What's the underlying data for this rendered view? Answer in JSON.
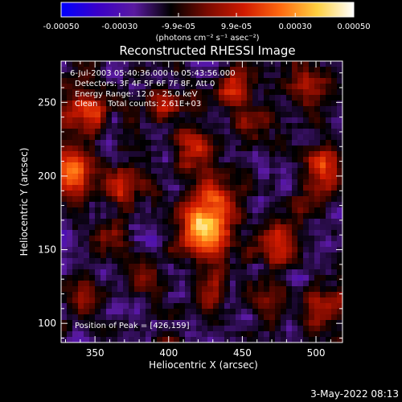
{
  "chart_data": {
    "type": "heatmap",
    "title": "Reconstructed RHESSI Image",
    "xlabel": "Heliocentric X (arcsec)",
    "ylabel": "Heliocentric Y (arcsec)",
    "xlim": [
      327,
      518
    ],
    "ylim": [
      87,
      278
    ],
    "x_ticks": [
      350,
      400,
      450,
      500
    ],
    "y_ticks": [
      100,
      150,
      200,
      250
    ],
    "colorbar": {
      "ticks": [
        "-0.00050",
        "-0.00030",
        "-9.9e-05",
        "9.9e-05",
        "0.00030",
        "0.00050"
      ],
      "tick_values": [
        -0.0005,
        -0.0003,
        -9.9e-05,
        9.9e-05,
        0.0003,
        0.0005
      ],
      "units_label": "(photons cm⁻² s⁻¹ asec⁻²)",
      "colors": [
        "#0000ff",
        "#3a00c8",
        "#5a1aa0",
        "#000000",
        "#7a0a00",
        "#d01a00",
        "#ff6a10",
        "#ffd040",
        "#ffffff"
      ]
    },
    "annotations": {
      "time": "6-Jul-2003 05:40:36.000 to 05:43:56.000",
      "detectors": "Detectors: 3F 4F 5F 6F 7F 8F, Att 0",
      "energy": "Energy Range: 12.0 - 25.0 keV",
      "clean": "Clean    Total counts: 2.61E+03",
      "peak": "Position of Peak = [426,159]"
    },
    "peak": {
      "x": 426,
      "y": 159
    },
    "sources": [
      {
        "x": 426,
        "y": 165,
        "amp": 1.0,
        "s": 12
      },
      {
        "x": 331,
        "y": 203,
        "amp": 0.9,
        "s": 12
      },
      {
        "x": 342,
        "y": 243,
        "amp": 0.55,
        "s": 11
      },
      {
        "x": 505,
        "y": 205,
        "amp": 0.6,
        "s": 10
      },
      {
        "x": 476,
        "y": 152,
        "amp": 0.45,
        "s": 10
      },
      {
        "x": 445,
        "y": 258,
        "amp": 0.45,
        "s": 10
      },
      {
        "x": 495,
        "y": 262,
        "amp": 0.45,
        "s": 10
      },
      {
        "x": 418,
        "y": 217,
        "amp": 0.5,
        "s": 10
      },
      {
        "x": 430,
        "y": 190,
        "amp": 0.45,
        "s": 9
      },
      {
        "x": 398,
        "y": 248,
        "amp": 0.4,
        "s": 9
      },
      {
        "x": 370,
        "y": 193,
        "amp": 0.35,
        "s": 9
      },
      {
        "x": 360,
        "y": 158,
        "amp": 0.35,
        "s": 9
      },
      {
        "x": 382,
        "y": 128,
        "amp": 0.35,
        "s": 9
      },
      {
        "x": 430,
        "y": 122,
        "amp": 0.4,
        "s": 9
      },
      {
        "x": 505,
        "y": 108,
        "amp": 0.45,
        "s": 10
      },
      {
        "x": 470,
        "y": 115,
        "amp": 0.35,
        "s": 9
      },
      {
        "x": 340,
        "y": 118,
        "amp": 0.35,
        "s": 9
      },
      {
        "x": 490,
        "y": 180,
        "amp": 0.3,
        "s": 8
      },
      {
        "x": 455,
        "y": 235,
        "amp": 0.3,
        "s": 8
      }
    ]
  },
  "footer": {
    "date": "3-May-2022 08:13"
  }
}
